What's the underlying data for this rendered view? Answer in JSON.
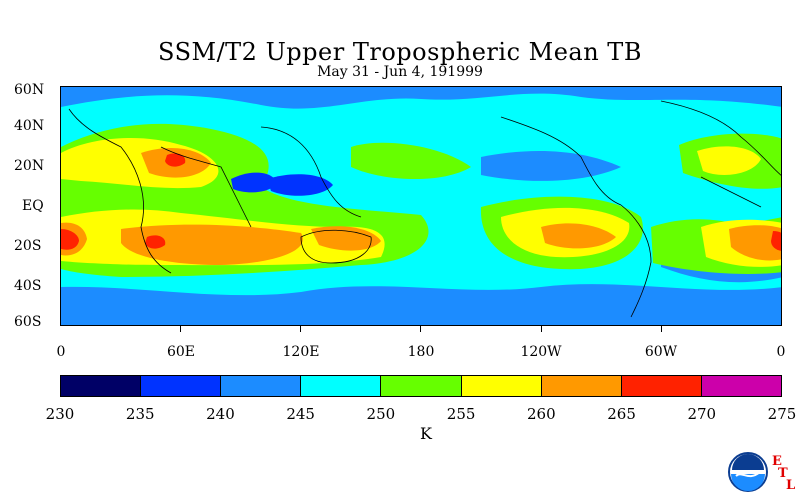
{
  "title": "SSM/T2 Upper Tropospheric Mean TB",
  "subtitle": "May 31 - Jun 4, 191999",
  "y_axis": {
    "labels": [
      "60N",
      "40N",
      "20N",
      "EQ",
      "20S",
      "40S",
      "60S"
    ]
  },
  "x_axis": {
    "labels": [
      "0",
      "60E",
      "120E",
      "180",
      "120W",
      "60W",
      "0"
    ]
  },
  "colorbar": {
    "colors": [
      "#000066",
      "#0033ff",
      "#1c8cff",
      "#00ffff",
      "#66ff00",
      "#ffff00",
      "#ff9900",
      "#ff2200",
      "#cc00aa"
    ],
    "labels": [
      "230",
      "235",
      "240",
      "245",
      "250",
      "255",
      "260",
      "265",
      "270",
      "275"
    ],
    "units": "K"
  },
  "logo": {
    "name": "NOAA",
    "letters": [
      "E",
      "T",
      "L"
    ]
  }
}
